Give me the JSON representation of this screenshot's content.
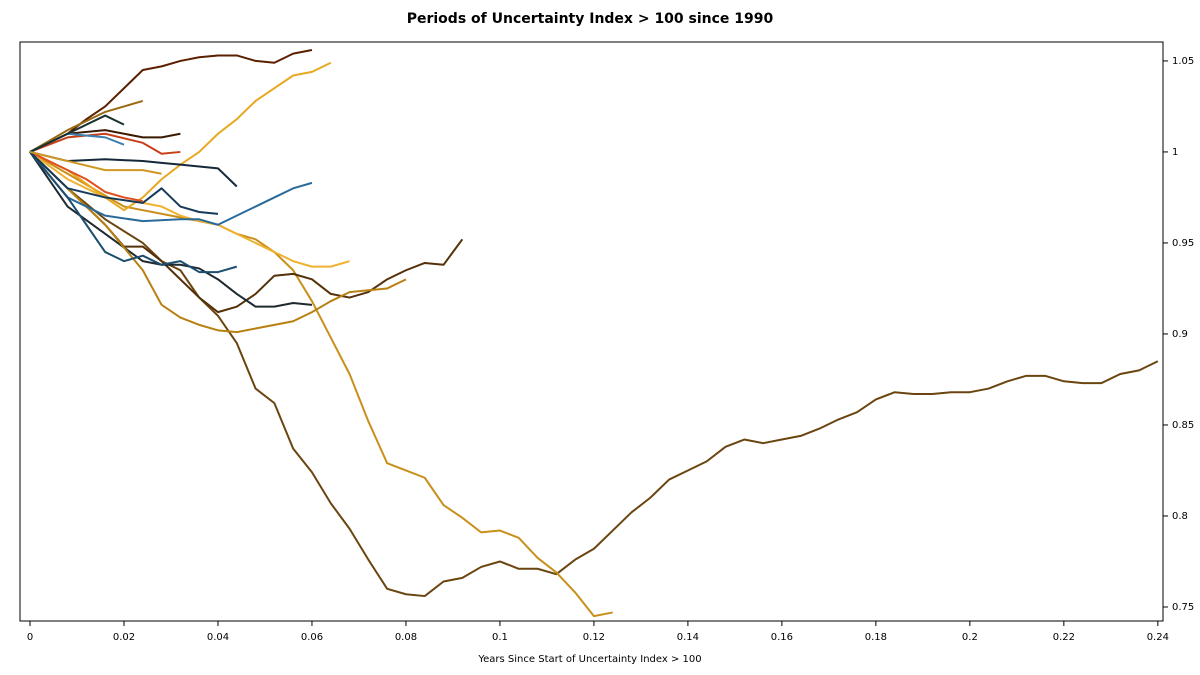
{
  "chart_data": {
    "type": "line",
    "title": "Periods of Uncertainty Index > 100 since 1990",
    "x_label": "Years Since Start of Uncertainty Index > 100",
    "xlim": [
      -0.00213,
      0.2411
    ],
    "ylim": [
      0.7423,
      1.0604
    ],
    "xticks": [
      0,
      0.02,
      0.04,
      0.06,
      0.08,
      0.1,
      0.12,
      0.14,
      0.16,
      0.18,
      0.2,
      0.22,
      0.24
    ],
    "yticks": [
      0.75,
      0.8,
      0.85,
      0.9,
      0.95,
      1,
      1.05
    ],
    "y_axis_side": "right",
    "series": [
      {
        "color": "#6b4510",
        "x": [
          0,
          0.008,
          0.016,
          0.024,
          0.028,
          0.032,
          0.036,
          0.04,
          0.044,
          0.048,
          0.052,
          0.056,
          0.06,
          0.064,
          0.068,
          0.072,
          0.076,
          0.08,
          0.084,
          0.088,
          0.092,
          0.096,
          0.1,
          0.104,
          0.108,
          0.112,
          0.116,
          0.12,
          0.124,
          0.128,
          0.132,
          0.136,
          0.14,
          0.144,
          0.148,
          0.152,
          0.156,
          0.16,
          0.164,
          0.168,
          0.172,
          0.176,
          0.18,
          0.184,
          0.188,
          0.192,
          0.196,
          0.2,
          0.204,
          0.208,
          0.212,
          0.216,
          0.22,
          0.224,
          0.228,
          0.232,
          0.236,
          0.24
        ],
        "values": [
          1,
          0.98,
          0.963,
          0.95,
          0.94,
          0.935,
          0.92,
          0.91,
          0.895,
          0.87,
          0.862,
          0.837,
          0.824,
          0.807,
          0.793,
          0.776,
          0.76,
          0.757,
          0.756,
          0.764,
          0.766,
          0.772,
          0.775,
          0.771,
          0.771,
          0.768,
          0.776,
          0.782,
          0.792,
          0.802,
          0.81,
          0.82,
          0.825,
          0.83,
          0.838,
          0.842,
          0.84,
          0.842,
          0.844,
          0.848,
          0.853,
          0.857,
          0.864,
          0.868,
          0.867,
          0.867,
          0.868,
          0.868,
          0.87,
          0.874,
          0.877,
          0.877,
          0.874,
          0.873,
          0.873,
          0.878,
          0.88,
          0.885
        ]
      },
      {
        "color": "#c8901a",
        "x": [
          0,
          0.01,
          0.02,
          0.03,
          0.04,
          0.044,
          0.048,
          0.052,
          0.056,
          0.06,
          0.064,
          0.068,
          0.072,
          0.076,
          0.08,
          0.084,
          0.088,
          0.092,
          0.096,
          0.1,
          0.104,
          0.108,
          0.112,
          0.116,
          0.12,
          0.124
        ],
        "values": [
          1,
          0.985,
          0.97,
          0.965,
          0.96,
          0.955,
          0.952,
          0.945,
          0.935,
          0.918,
          0.898,
          0.878,
          0.852,
          0.829,
          0.825,
          0.821,
          0.806,
          0.799,
          0.791,
          0.792,
          0.788,
          0.777,
          0.769,
          0.758,
          0.745,
          0.747
        ]
      },
      {
        "color": "#5c1f00",
        "x": [
          0,
          0.008,
          0.012,
          0.016,
          0.02,
          0.024,
          0.028,
          0.032,
          0.036,
          0.04,
          0.044,
          0.048,
          0.052,
          0.056,
          0.06
        ],
        "values": [
          1,
          1.01,
          1.018,
          1.025,
          1.035,
          1.045,
          1.047,
          1.05,
          1.052,
          1.053,
          1.053,
          1.05,
          1.049,
          1.054,
          1.056
        ]
      },
      {
        "color": "#e8a820",
        "x": [
          0,
          0.008,
          0.016,
          0.02,
          0.024,
          0.028,
          0.032,
          0.036,
          0.04,
          0.044,
          0.048,
          0.052,
          0.056,
          0.06,
          0.064
        ],
        "values": [
          1,
          0.99,
          0.975,
          0.968,
          0.975,
          0.985,
          0.993,
          1,
          1.01,
          1.018,
          1.028,
          1.035,
          1.042,
          1.044,
          1.049
        ]
      },
      {
        "color": "#553008",
        "x": [
          0,
          0.008,
          0.016,
          0.02,
          0.024,
          0.028,
          0.032,
          0.036,
          0.04,
          0.044,
          0.048,
          0.052,
          0.056,
          0.06,
          0.064,
          0.068,
          0.072,
          0.076,
          0.08,
          0.084,
          0.088,
          0.092
        ],
        "values": [
          1,
          0.98,
          0.96,
          0.948,
          0.948,
          0.94,
          0.93,
          0.92,
          0.912,
          0.915,
          0.922,
          0.932,
          0.933,
          0.93,
          0.922,
          0.92,
          0.923,
          0.93,
          0.935,
          0.939,
          0.938,
          0.952
        ]
      },
      {
        "color": "#1f2a30",
        "x": [
          0,
          0.008,
          0.016,
          0.024,
          0.028,
          0.032,
          0.036,
          0.04,
          0.044,
          0.048,
          0.052,
          0.056,
          0.06
        ],
        "values": [
          1,
          0.97,
          0.955,
          0.94,
          0.938,
          0.938,
          0.936,
          0.93,
          0.922,
          0.915,
          0.915,
          0.917,
          0.916
        ]
      },
      {
        "color": "#b88010",
        "x": [
          0,
          0.008,
          0.016,
          0.024,
          0.028,
          0.032,
          0.036,
          0.04,
          0.044,
          0.048,
          0.052,
          0.056,
          0.06,
          0.064,
          0.068,
          0.072,
          0.076,
          0.08
        ],
        "values": [
          1,
          0.98,
          0.96,
          0.935,
          0.916,
          0.909,
          0.905,
          0.902,
          0.901,
          0.903,
          0.905,
          0.907,
          0.912,
          0.918,
          0.923,
          0.924,
          0.925,
          0.93
        ]
      },
      {
        "color": "#f0b030",
        "x": [
          0,
          0.008,
          0.016,
          0.024,
          0.028,
          0.032,
          0.036,
          0.04,
          0.044,
          0.048,
          0.052,
          0.056,
          0.06,
          0.064,
          0.068
        ],
        "values": [
          1,
          0.985,
          0.975,
          0.972,
          0.97,
          0.965,
          0.962,
          0.96,
          0.955,
          0.95,
          0.945,
          0.94,
          0.937,
          0.937,
          0.94
        ]
      },
      {
        "color": "#2a6a9a",
        "x": [
          0,
          0.008,
          0.016,
          0.024,
          0.032,
          0.036,
          0.04,
          0.044,
          0.048,
          0.052,
          0.056,
          0.06
        ],
        "values": [
          1,
          0.975,
          0.965,
          0.962,
          0.963,
          0.963,
          0.96,
          0.965,
          0.97,
          0.975,
          0.98,
          0.983
        ]
      },
      {
        "color": "#1d4e6e",
        "x": [
          0,
          0.008,
          0.012,
          0.016,
          0.02,
          0.024,
          0.028,
          0.032,
          0.036,
          0.04,
          0.044
        ],
        "values": [
          1,
          0.975,
          0.96,
          0.945,
          0.94,
          0.943,
          0.938,
          0.94,
          0.934,
          0.934,
          0.937
        ]
      },
      {
        "color": "#14283a",
        "x": [
          0,
          0.008,
          0.016,
          0.024,
          0.028,
          0.032,
          0.036,
          0.04,
          0.044
        ],
        "values": [
          1,
          0.995,
          0.996,
          0.995,
          0.994,
          0.993,
          0.992,
          0.991,
          0.981
        ]
      },
      {
        "color": "#c8401a",
        "x": [
          0,
          0.008,
          0.016,
          0.024,
          0.028,
          0.032
        ],
        "values": [
          1,
          1.008,
          1.01,
          1.005,
          0.999,
          1
        ]
      },
      {
        "color": "#3a1a00",
        "x": [
          0,
          0.008,
          0.016,
          0.024,
          0.028,
          0.032
        ],
        "values": [
          1,
          1.01,
          1.012,
          1.008,
          1.008,
          1.01
        ]
      },
      {
        "color": "#9a6a10",
        "x": [
          0,
          0.008,
          0.016,
          0.02,
          0.024
        ],
        "values": [
          1,
          1.012,
          1.022,
          1.025,
          1.028
        ]
      },
      {
        "color": "#e05020",
        "x": [
          0,
          0.008,
          0.012,
          0.016,
          0.02,
          0.024
        ],
        "values": [
          1,
          0.99,
          0.985,
          0.978,
          0.975,
          0.973
        ]
      },
      {
        "color": "#163a5a",
        "x": [
          0,
          0.008,
          0.016,
          0.024,
          0.028,
          0.032,
          0.036,
          0.04
        ],
        "values": [
          1,
          0.98,
          0.975,
          0.972,
          0.98,
          0.97,
          0.967,
          0.966
        ]
      },
      {
        "color": "#3a80b0",
        "x": [
          0,
          0.008,
          0.016,
          0.02
        ],
        "values": [
          1,
          1.01,
          1.008,
          1.004
        ]
      },
      {
        "color": "#1a3030",
        "x": [
          0,
          0.008,
          0.016,
          0.02
        ],
        "values": [
          1,
          1.01,
          1.02,
          1.015
        ]
      },
      {
        "color": "#d09820",
        "x": [
          0,
          0.008,
          0.016,
          0.024,
          0.028
        ],
        "values": [
          1,
          0.995,
          0.99,
          0.99,
          0.988
        ]
      }
    ]
  }
}
